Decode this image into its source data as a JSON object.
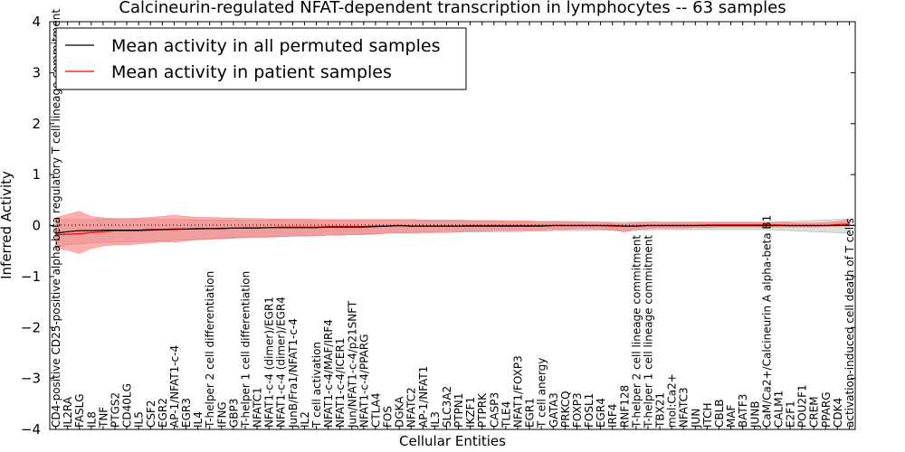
{
  "chart_data": {
    "type": "line",
    "title": "Calcineurin-regulated NFAT-dependent transcription in lymphocytes -- 63 samples",
    "xlabel": "Cellular Entities",
    "ylabel": "Inferred Activity",
    "ylim": [
      -4,
      4
    ],
    "yticks": [
      "4",
      "3",
      "2",
      "1",
      "0",
      "−1",
      "−2",
      "−3",
      "−4"
    ],
    "grid": false,
    "legend": {
      "placement": "top-left",
      "entries": [
        {
          "label": "Mean activity in all permuted samples",
          "color": "#000000"
        },
        {
          "label": "Mean activity in patient samples",
          "color": "#ff0000"
        }
      ]
    },
    "categories": [
      "CD4-positive CD25-positive alpha-beta regulatory T cell lineage commitment",
      "IL2RA",
      "FASLG",
      "IL8",
      "TNF",
      "PTGS2",
      "CD40LG",
      "IL5",
      "CSF2",
      "EGR2",
      "AP-1/NFAT1-c-4",
      "EGR3",
      "IL4",
      "T-helper 2 cell differentiation",
      "IFNG",
      "GBP3",
      "T-helper 1 cell differentiation",
      "NFATC1",
      "NFAT1-c-4 (dimer)/EGR1",
      "NFAT1-c-4 (dimer)/EGR4",
      "JunB/Fra1/NFAT1-c-4",
      "IL2",
      "T cell activation",
      "NFAT1-c-4/MAF/IRF4",
      "NFAT1-c-4/ICER1",
      "Jun/NFAT1-c-4/p21SNFT",
      "NFAT1-c-4/PPARG",
      "CTLA4",
      "FOS",
      "DGKA",
      "NFATC2",
      "AP-1/NFAT1",
      "IL3",
      "SLC3A2",
      "PTPN1",
      "IKZF1",
      "PTPRK",
      "CASP3",
      "TLE4",
      "NFAT1/FOXP3",
      "EGR1",
      "T cell anergy",
      "GATA3",
      "PRKCQ",
      "FOXP3",
      "FOSL1",
      "EGR4",
      "IRF4",
      "RNF128",
      "T-helper 2 cell lineage commitment",
      "T-helper 1 cell lineage commitment",
      "TBX21",
      "mol:Ca2+",
      "NFATC3",
      "JUN",
      "ITCH",
      "CBLB",
      "MAF",
      "BATF3",
      "JUNB",
      "CaM/Ca2+/Calcineurin A alpha-beta B1",
      "CALM1",
      "E2F1",
      "POU2F1",
      "CREM",
      "PPARG",
      "CDK4",
      "activation-induced cell death of T cells"
    ],
    "series": [
      {
        "name": "Mean activity in all permuted samples",
        "color": "#000000",
        "values": [
          -0.15,
          -0.12,
          -0.1,
          -0.1,
          -0.09,
          -0.09,
          -0.09,
          -0.09,
          -0.08,
          -0.08,
          -0.07,
          -0.07,
          -0.06,
          -0.06,
          -0.06,
          -0.05,
          -0.05,
          -0.05,
          -0.04,
          -0.04,
          -0.04,
          -0.04,
          -0.04,
          -0.03,
          -0.03,
          -0.03,
          -0.03,
          -0.02,
          -0.01,
          0.0,
          -0.01,
          -0.01,
          -0.01,
          -0.01,
          -0.01,
          -0.01,
          -0.01,
          -0.01,
          -0.01,
          -0.01,
          -0.01,
          -0.01,
          0.0,
          0.0,
          0.0,
          0.0,
          0.0,
          0.0,
          -0.01,
          -0.01,
          0.0,
          0.0,
          0.0,
          0.0,
          0.0,
          0.0,
          0.0,
          0.0,
          0.0,
          0.0,
          0.0,
          0.0,
          0.0,
          0.0,
          0.0,
          0.0,
          0.0,
          0.0
        ],
        "lower": [
          -0.42,
          -0.38,
          -0.36,
          -0.34,
          -0.33,
          -0.33,
          -0.32,
          -0.32,
          -0.31,
          -0.3,
          -0.29,
          -0.28,
          -0.27,
          -0.26,
          -0.25,
          -0.24,
          -0.24,
          -0.23,
          -0.22,
          -0.21,
          -0.21,
          -0.2,
          -0.2,
          -0.19,
          -0.18,
          -0.18,
          -0.17,
          -0.16,
          -0.15,
          -0.15,
          -0.15,
          -0.15,
          -0.14,
          -0.14,
          -0.13,
          -0.13,
          -0.13,
          -0.12,
          -0.12,
          -0.12,
          -0.11,
          -0.11,
          -0.1,
          -0.1,
          -0.1,
          -0.1,
          -0.09,
          -0.09,
          -0.09,
          -0.09,
          -0.09,
          -0.08,
          -0.08,
          -0.08,
          -0.08,
          -0.08,
          -0.08,
          -0.08,
          -0.08,
          -0.08,
          -0.08,
          -0.09,
          -0.1,
          -0.11,
          -0.12,
          -0.13,
          -0.14,
          -0.15
        ],
        "upper": [
          0.12,
          0.12,
          0.12,
          0.12,
          0.12,
          0.12,
          0.12,
          0.12,
          0.12,
          0.12,
          0.12,
          0.12,
          0.11,
          0.11,
          0.11,
          0.11,
          0.11,
          0.11,
          0.11,
          0.11,
          0.1,
          0.1,
          0.1,
          0.1,
          0.1,
          0.1,
          0.1,
          0.1,
          0.1,
          0.1,
          0.1,
          0.1,
          0.09,
          0.09,
          0.09,
          0.09,
          0.09,
          0.09,
          0.08,
          0.08,
          0.08,
          0.08,
          0.08,
          0.08,
          0.07,
          0.07,
          0.07,
          0.07,
          0.07,
          0.07,
          0.07,
          0.07,
          0.06,
          0.06,
          0.06,
          0.06,
          0.06,
          0.06,
          0.06,
          0.06,
          0.06,
          0.07,
          0.08,
          0.09,
          0.1,
          0.11,
          0.12,
          0.13
        ]
      },
      {
        "name": "Mean activity in patient samples",
        "color": "#ff0000",
        "values": [
          -0.18,
          -0.17,
          -0.16,
          -0.14,
          -0.12,
          -0.1,
          -0.1,
          -0.1,
          -0.09,
          -0.08,
          -0.08,
          -0.07,
          -0.07,
          -0.06,
          -0.05,
          -0.05,
          -0.04,
          -0.04,
          -0.04,
          -0.03,
          -0.03,
          -0.03,
          -0.03,
          -0.02,
          -0.02,
          -0.02,
          -0.02,
          -0.01,
          -0.01,
          0.0,
          -0.01,
          -0.01,
          -0.01,
          -0.01,
          -0.01,
          0.0,
          0.0,
          0.0,
          0.0,
          0.0,
          0.0,
          0.0,
          0.0,
          0.0,
          0.0,
          0.0,
          0.0,
          -0.01,
          -0.01,
          -0.01,
          0.0,
          0.0,
          0.0,
          0.0,
          0.0,
          0.01,
          0.01,
          0.01,
          0.01,
          0.01,
          0.01,
          0.01,
          0.0,
          0.0,
          0.0,
          0.0,
          0.02,
          0.03
        ],
        "lower": [
          -0.45,
          -0.48,
          -0.55,
          -0.45,
          -0.4,
          -0.38,
          -0.38,
          -0.36,
          -0.34,
          -0.32,
          -0.33,
          -0.3,
          -0.28,
          -0.27,
          -0.26,
          -0.25,
          -0.24,
          -0.23,
          -0.23,
          -0.22,
          -0.21,
          -0.21,
          -0.2,
          -0.19,
          -0.19,
          -0.18,
          -0.18,
          -0.17,
          -0.15,
          -0.14,
          -0.14,
          -0.13,
          -0.13,
          -0.12,
          -0.12,
          -0.11,
          -0.11,
          -0.1,
          -0.1,
          -0.1,
          -0.09,
          -0.09,
          -0.08,
          -0.08,
          -0.07,
          -0.07,
          -0.07,
          -0.09,
          -0.13,
          -0.08,
          -0.06,
          -0.05,
          -0.05,
          -0.05,
          -0.04,
          -0.04,
          -0.03,
          -0.03,
          -0.03,
          -0.03,
          -0.03,
          -0.03,
          -0.03,
          -0.03,
          -0.03,
          -0.02,
          -0.01,
          0.0
        ],
        "upper": [
          0.15,
          0.22,
          0.28,
          0.18,
          0.15,
          0.14,
          0.14,
          0.15,
          0.16,
          0.18,
          0.2,
          0.18,
          0.16,
          0.16,
          0.15,
          0.15,
          0.14,
          0.14,
          0.13,
          0.13,
          0.13,
          0.13,
          0.12,
          0.12,
          0.12,
          0.12,
          0.12,
          0.12,
          0.12,
          0.12,
          0.12,
          0.11,
          0.11,
          0.11,
          0.11,
          0.1,
          0.1,
          0.1,
          0.09,
          0.09,
          0.09,
          0.08,
          0.08,
          0.08,
          0.08,
          0.07,
          0.07,
          0.05,
          0.04,
          0.06,
          0.07,
          0.07,
          0.07,
          0.07,
          0.07,
          0.07,
          0.07,
          0.07,
          0.07,
          0.07,
          0.07,
          0.07,
          0.06,
          0.05,
          0.05,
          0.06,
          0.08,
          0.12
        ]
      }
    ]
  }
}
